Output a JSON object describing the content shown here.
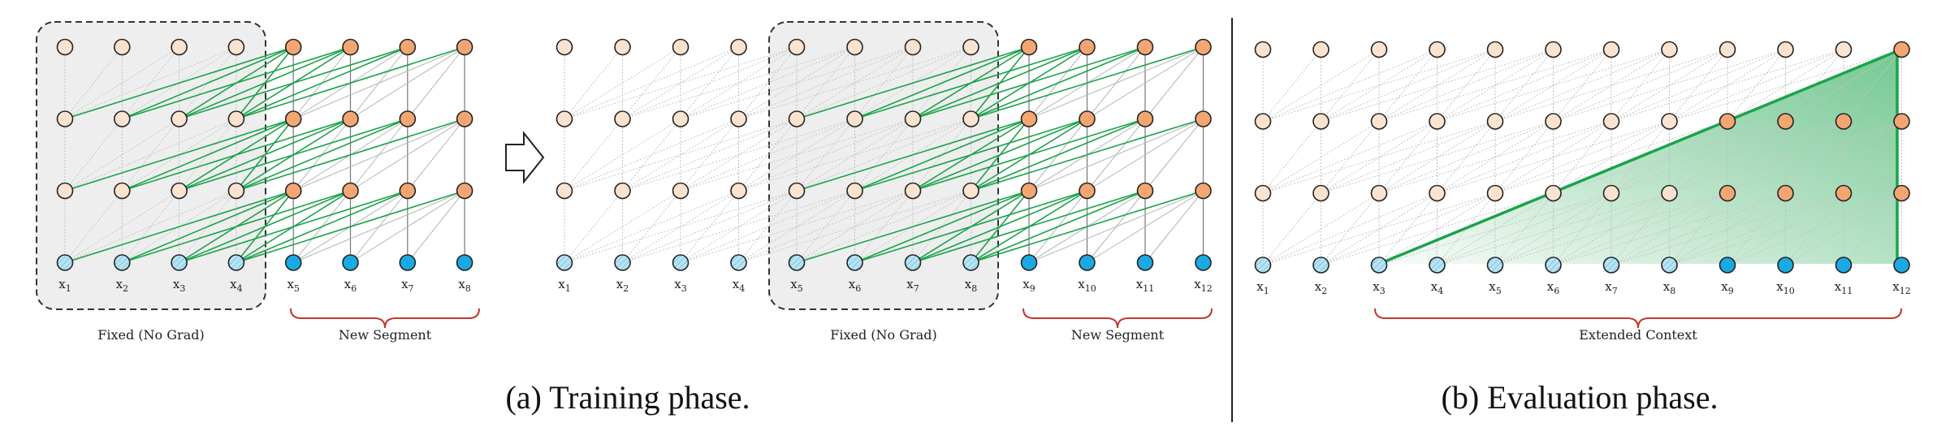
{
  "panels": {
    "training": {
      "caption": "(a) Training phase.",
      "step1": {
        "fixed_label": "Fixed (No Grad)",
        "new_label": "New Segment",
        "token_labels": [
          "x1",
          "x2",
          "x3",
          "x4",
          "x5",
          "x6",
          "x7",
          "x8"
        ]
      },
      "step2": {
        "fixed_label": "Fixed (No Grad)",
        "new_label": "New Segment",
        "token_labels": [
          "x1",
          "x2",
          "x3",
          "x4",
          "x5",
          "x6",
          "x7",
          "x8",
          "x9",
          "x10",
          "x11",
          "x12"
        ]
      }
    },
    "evaluation": {
      "caption": "(b) Evaluation phase.",
      "context_label": "Extended Context",
      "token_labels": [
        "x1",
        "x2",
        "x3",
        "x4",
        "x5",
        "x6",
        "x7",
        "x8",
        "x9",
        "x10",
        "x11",
        "x12"
      ]
    }
  },
  "colors": {
    "fixed_hidden": "#fbe3cf",
    "new_hidden": "#f3a672",
    "fixed_input": "#b6e4f4",
    "new_input": "#1aa9e2",
    "green": "#1aa34a",
    "brace_red": "#c0392b",
    "fixed_box_fill": "#eeeeee"
  },
  "icons": {
    "arrow": "right-arrow-icon"
  }
}
